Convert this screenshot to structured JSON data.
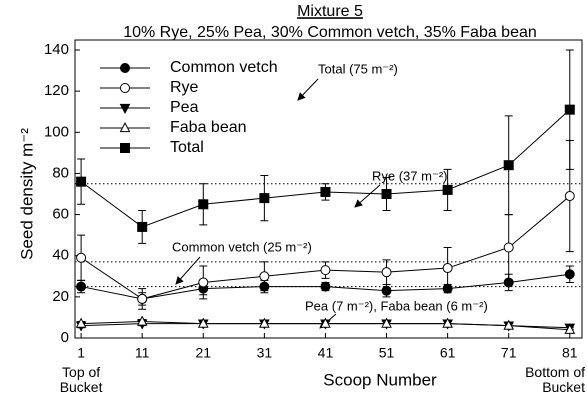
{
  "chart_data": {
    "type": "line",
    "title": "Mixture 5",
    "subtitle": "10% Rye, 25% Pea, 30% Common vetch, 35% Faba bean",
    "x_label": "Scoop Number",
    "y_label": "Seed density m⁻²",
    "x_end_labels": [
      "Top of Bucket",
      "Bottom of Bucket"
    ],
    "x": [
      1,
      11,
      21,
      31,
      41,
      51,
      61,
      71,
      81
    ],
    "xlim": [
      0,
      83
    ],
    "xticks": [
      1,
      11,
      21,
      31,
      41,
      51,
      61,
      71,
      81
    ],
    "ylim": [
      0,
      140
    ],
    "yticks": [
      0,
      20,
      40,
      60,
      80,
      100,
      120,
      140
    ],
    "grid": false,
    "legend": "upper left",
    "series": [
      {
        "name": "Common vetch",
        "color": "#000000",
        "marker": "circle-filled",
        "values": [
          25,
          19,
          24,
          25,
          25,
          23,
          24,
          27,
          31
        ],
        "errors": [
          3,
          3,
          3,
          3,
          2,
          3,
          2,
          4,
          4
        ]
      },
      {
        "name": "Rye",
        "color": "#000000",
        "marker": "circle-open",
        "values": [
          39,
          19,
          27,
          30,
          33,
          32,
          34,
          44,
          69
        ],
        "errors": [
          11,
          5,
          8,
          7,
          4,
          6,
          10,
          16,
          27
        ]
      },
      {
        "name": "Pea",
        "color": "#000000",
        "marker": "triangle-down-filled",
        "values": [
          6,
          7,
          7,
          7,
          7,
          7,
          7,
          6,
          5
        ],
        "errors": [
          1,
          1,
          1,
          1,
          1,
          1,
          1,
          1,
          1
        ]
      },
      {
        "name": "Faba bean",
        "color": "#000000",
        "marker": "triangle-up-open",
        "values": [
          7,
          8,
          7,
          7,
          7,
          7,
          7,
          6,
          4
        ],
        "errors": [
          1,
          1,
          1,
          1,
          1,
          1,
          1,
          1,
          1
        ]
      },
      {
        "name": "Total",
        "color": "#000000",
        "marker": "square-filled",
        "values": [
          76,
          54,
          65,
          68,
          71,
          70,
          72,
          84,
          111
        ],
        "errors": [
          11,
          8,
          10,
          11,
          4,
          8,
          10,
          24,
          29
        ]
      }
    ],
    "reference_lines": [
      75,
      37,
      25
    ],
    "annotations": [
      "Total (75 m⁻²)",
      "Rye (37 m⁻²)",
      "Common vetch (25 m⁻²)",
      "Pea (7 m⁻²), Faba bean (6 m⁻²)"
    ]
  }
}
